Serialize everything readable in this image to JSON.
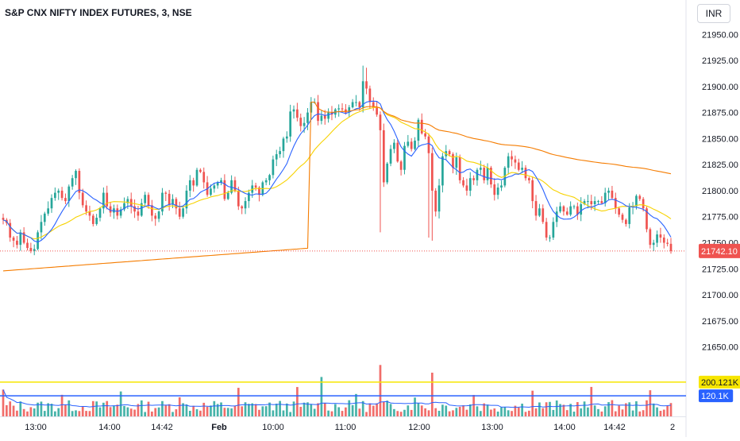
{
  "header": {
    "symbol": "S&P CNX NIFTY INDEX FUTURES, 3, NSE",
    "currency": "INR"
  },
  "chart_data": {
    "type": "candlestick",
    "x_tick_labels": [
      "13:00",
      "14:00",
      "14:42",
      "Feb",
      "10:00",
      "11:00",
      "12:00",
      "13:00",
      "14:00",
      "14:42",
      "2"
    ],
    "y_ticks": [
      21650,
      21675,
      21700,
      21725,
      21750,
      21775,
      21800,
      21825,
      21850,
      21875,
      21900,
      21925,
      21950
    ],
    "y_tick_labels": [
      "21650.00",
      "21675.00",
      "21700.00",
      "21725.00",
      "21750.00",
      "21775.00",
      "21800.00",
      "21825.00",
      "21850.00",
      "21875.00",
      "21900.00",
      "21925.00",
      "21950.00"
    ],
    "ylim": [
      21636,
      21983
    ],
    "last_price": 21742.1,
    "last_price_label": "21742.10",
    "candles_close": [
      21772,
      21769,
      21755,
      21752,
      21748,
      21760,
      21750,
      21745,
      21742,
      21744,
      21760,
      21770,
      21778,
      21783,
      21793,
      21798,
      21800,
      21793,
      21790,
      21804,
      21812,
      21819,
      21798,
      21786,
      21780,
      21776,
      21768,
      21774,
      21783,
      21798,
      21785,
      21779,
      21783,
      21776,
      21782,
      21788,
      21792,
      21785,
      21780,
      21776,
      21788,
      21796,
      21786,
      21776,
      21773,
      21780,
      21798,
      21797,
      21787,
      21792,
      21783,
      21775,
      21783,
      21800,
      21810,
      21805,
      21820,
      21818,
      21808,
      21796,
      21802,
      21805,
      21808,
      21810,
      21792,
      21798,
      21810,
      21800,
      21785,
      21783,
      21790,
      21798,
      21805,
      21803,
      21796,
      21808,
      21810,
      21815,
      21830,
      21835,
      21838,
      21850,
      21852,
      21876,
      21878,
      21870,
      21862,
      21865,
      21875,
      21885,
      21885,
      21867,
      21872,
      21869,
      21875,
      21873,
      21878,
      21879,
      21878,
      21875,
      21880,
      21885,
      21885,
      21880,
      21905,
      21898,
      21885,
      21880,
      21873,
      21858,
      21808,
      21826,
      21840,
      21846,
      21828,
      21820,
      21843,
      21847,
      21840,
      21848,
      21868,
      21855,
      21852,
      21836,
      21800,
      21780,
      21805,
      21833,
      21838,
      21835,
      21822,
      21832,
      21810,
      21805,
      21800,
      21812,
      21810,
      21820,
      21822,
      21810,
      21822,
      21806,
      21796,
      21803,
      21805,
      21822,
      21833,
      21830,
      21827,
      21820,
      21822,
      21812,
      21810,
      21790,
      21776,
      21783,
      21770,
      21755,
      21755,
      21770,
      21780,
      21785,
      21780,
      21777,
      21785,
      21785,
      21777,
      21787,
      21790,
      21790,
      21787,
      21790,
      21790,
      21788,
      21798,
      21800,
      21793,
      21783,
      21777,
      21772,
      21768,
      21784,
      21785,
      21795,
      21792,
      21783,
      21763,
      21748,
      21750,
      21758,
      21755,
      21750,
      21749,
      21742.1
    ],
    "vwap_start": 21723,
    "volume_levels": [
      {
        "value": 200121,
        "label": "200.121K",
        "color": "#f7e600"
      },
      {
        "value": 120100,
        "label": "120.1K",
        "color": "#2962ff"
      }
    ],
    "colors": {
      "up": "#26a69a",
      "down": "#ef5350",
      "ma_fast": "#2962ff",
      "ma_slow": "#f7d200",
      "vwap": "#f57c00",
      "price_label_bg": "#ef5350"
    }
  }
}
